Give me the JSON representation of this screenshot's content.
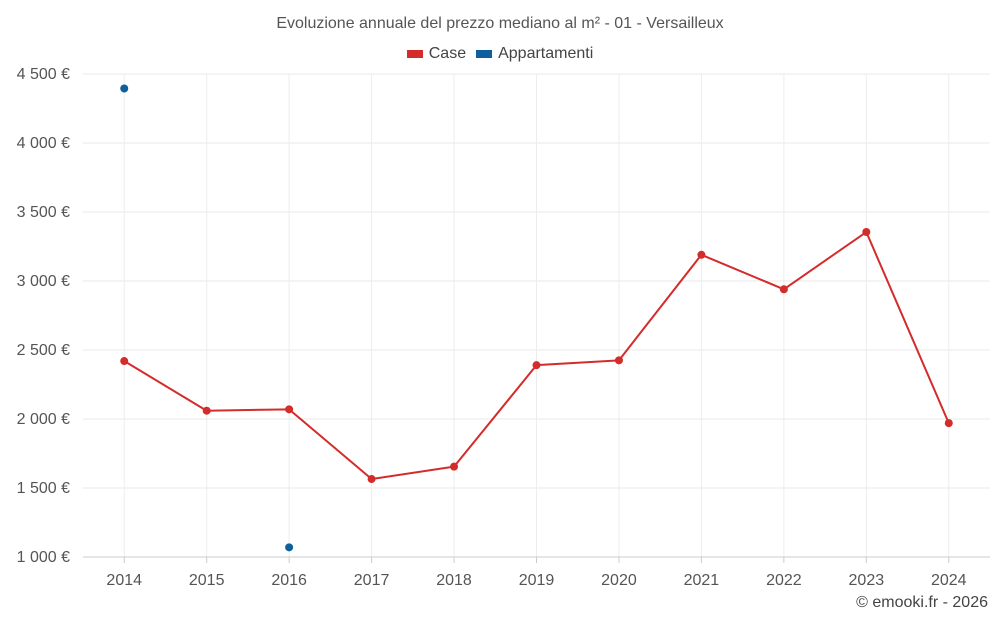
{
  "chart_data": {
    "type": "line",
    "title": "Evoluzione annuale del prezzo mediano al m² - 01 - Versailleux",
    "x": [
      "2014",
      "2015",
      "2016",
      "2017",
      "2018",
      "2019",
      "2020",
      "2021",
      "2022",
      "2023",
      "2024"
    ],
    "y_ticks": [
      1000,
      1500,
      2000,
      2500,
      3000,
      3500,
      4000,
      4500
    ],
    "y_tick_labels": [
      "1 000 €",
      "1 500 €",
      "2 000 €",
      "2 500 €",
      "3 000 €",
      "3 500 €",
      "4 000 €",
      "4 500 €"
    ],
    "ylim": [
      1000,
      4500
    ],
    "grid": true,
    "legend_position": "top-center",
    "series": [
      {
        "name": "Case",
        "color": "#d42b2b",
        "values": [
          2420,
          2060,
          2070,
          1565,
          1655,
          2390,
          2425,
          3190,
          2940,
          3355,
          1970
        ]
      },
      {
        "name": "Appartamenti",
        "color": "#0d5f9e",
        "values": [
          4395,
          null,
          1070,
          null,
          null,
          null,
          null,
          null,
          null,
          null,
          null
        ]
      }
    ]
  },
  "footer": {
    "copyright": "© emooki.fr - 2026"
  }
}
